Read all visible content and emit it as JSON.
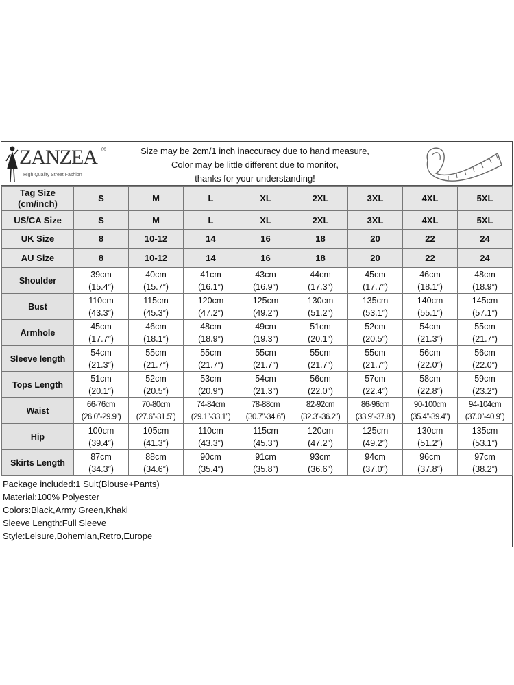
{
  "brand": {
    "name": "ZANZEA",
    "registered": "®",
    "tagline": "High Quality Street Fashion"
  },
  "notice": [
    "Size may be 2cm/1 inch inaccuracy due to hand measure,",
    "Color may be little different due to monitor,",
    "thanks for your understanding!"
  ],
  "size_rows": [
    {
      "label": "Tag Size (cm/inch)",
      "values": [
        "S",
        "M",
        "L",
        "XL",
        "2XL",
        "3XL",
        "4XL",
        "5XL"
      ]
    },
    {
      "label": "US/CA Size",
      "values": [
        "S",
        "M",
        "L",
        "XL",
        "2XL",
        "3XL",
        "4XL",
        "5XL"
      ]
    },
    {
      "label": "UK Size",
      "values": [
        "8",
        "10-12",
        "14",
        "16",
        "18",
        "20",
        "22",
        "24"
      ]
    },
    {
      "label": "AU Size",
      "values": [
        "8",
        "10-12",
        "14",
        "16",
        "18",
        "20",
        "22",
        "24"
      ]
    }
  ],
  "measure_rows": [
    {
      "label": "Shoulder",
      "cm": [
        "39cm",
        "40cm",
        "41cm",
        "43cm",
        "44cm",
        "45cm",
        "46cm",
        "48cm"
      ],
      "inch": [
        "(15.4”)",
        "(15.7”)",
        "(16.1”)",
        "(16.9”)",
        "(17.3”)",
        "(17.7”)",
        "(18.1”)",
        "(18.9”)"
      ]
    },
    {
      "label": "Bust",
      "cm": [
        "110cm",
        "115cm",
        "120cm",
        "125cm",
        "130cm",
        "135cm",
        "140cm",
        "145cm"
      ],
      "inch": [
        "(43.3”)",
        "(45.3”)",
        "(47.2”)",
        "(49.2”)",
        "(51.2”)",
        "(53.1”)",
        "(55.1”)",
        "(57.1”)"
      ]
    },
    {
      "label": "Armhole",
      "cm": [
        "45cm",
        "46cm",
        "48cm",
        "49cm",
        "51cm",
        "52cm",
        "54cm",
        "55cm"
      ],
      "inch": [
        "(17.7”)",
        "(18.1”)",
        "(18.9”)",
        "(19.3”)",
        "(20.1”)",
        "(20.5”)",
        "(21.3”)",
        "(21.7”)"
      ]
    },
    {
      "label": "Sleeve length",
      "cm": [
        "54cm",
        "55cm",
        "55cm",
        "55cm",
        "55cm",
        "55cm",
        "56cm",
        "56cm"
      ],
      "inch": [
        "(21.3”)",
        "(21.7”)",
        "(21.7”)",
        "(21.7”)",
        "(21.7”)",
        "(21.7”)",
        "(22.0”)",
        "(22.0”)"
      ]
    },
    {
      "label": "Tops Length",
      "cm": [
        "51cm",
        "52cm",
        "53cm",
        "54cm",
        "56cm",
        "57cm",
        "58cm",
        "59cm"
      ],
      "inch": [
        "(20.1”)",
        "(20.5”)",
        "(20.9”)",
        "(21.3”)",
        "(22.0”)",
        "(22.4”)",
        "(22.8”)",
        "(23.2”)"
      ]
    },
    {
      "label": "Waist",
      "cm": [
        "66-76cm",
        "70-80cm",
        "74-84cm",
        "78-88cm",
        "82-92cm",
        "86-96cm",
        "90-100cm",
        "94-104cm"
      ],
      "inch": [
        "(26.0”-29.9”)",
        "(27.6”-31.5”)",
        "(29.1”-33.1”)",
        "(30.7”-34.6”)",
        "(32.3”-36.2”)",
        "(33.9”-37.8”)",
        "(35.4”-39.4”)",
        "(37.0”-40.9”)"
      ]
    },
    {
      "label": "Hip",
      "cm": [
        "100cm",
        "105cm",
        "110cm",
        "115cm",
        "120cm",
        "125cm",
        "130cm",
        "135cm"
      ],
      "inch": [
        "(39.4”)",
        "(41.3”)",
        "(43.3”)",
        "(45.3”)",
        "(47.2”)",
        "(49.2”)",
        "(51.2”)",
        "(53.1”)"
      ]
    },
    {
      "label": "Skirts Length",
      "cm": [
        "87cm",
        "88cm",
        "90cm",
        "91cm",
        "93cm",
        "94cm",
        "96cm",
        "97cm"
      ],
      "inch": [
        "(34.3”)",
        "(34.6”)",
        "(35.4”)",
        "(35.8”)",
        "(36.6”)",
        "(37.0”)",
        "(37.8”)",
        "(38.2”)"
      ]
    }
  ],
  "notes": [
    "Package included:1 Suit(Blouse+Pants)",
    "Material:100% Polyester",
    "Colors:Black,Army Green,Khaki",
    "Sleeve Length:Full Sleeve",
    "Style:Leisure,Bohemian,Retro,Europe"
  ]
}
